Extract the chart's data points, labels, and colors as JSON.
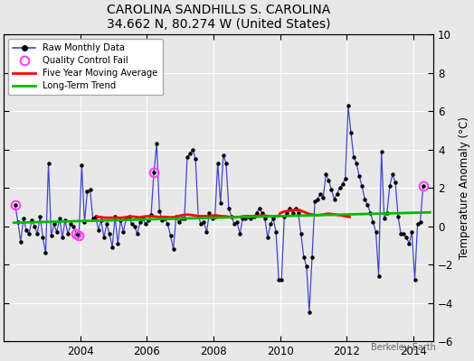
{
  "title": "CAROLINA SANDHILLS S. CAROLINA",
  "subtitle": "34.662 N, 80.274 W (United States)",
  "ylabel": "Temperature Anomaly (°C)",
  "watermark": "Berkeley Earth",
  "ylim": [
    -6,
    10
  ],
  "yticks": [
    -6,
    -4,
    -2,
    0,
    2,
    4,
    6,
    8,
    10
  ],
  "bg_color": "#e8e8e8",
  "plot_bg_color": "#e8e8e8",
  "grid_color": "#ffffff",
  "raw_line_color": "#4444cc",
  "raw_marker_color": "#000000",
  "qc_fail_color": "#ff44ff",
  "moving_avg_color": "#ff0000",
  "trend_color": "#00bb00",
  "raw_data_x": [
    2002.042,
    2002.125,
    2002.208,
    2002.292,
    2002.375,
    2002.458,
    2002.542,
    2002.625,
    2002.708,
    2002.792,
    2002.875,
    2002.958,
    2003.042,
    2003.125,
    2003.208,
    2003.292,
    2003.375,
    2003.458,
    2003.542,
    2003.625,
    2003.708,
    2003.792,
    2003.875,
    2003.958,
    2004.042,
    2004.125,
    2004.208,
    2004.292,
    2004.375,
    2004.458,
    2004.542,
    2004.625,
    2004.708,
    2004.792,
    2004.875,
    2004.958,
    2005.042,
    2005.125,
    2005.208,
    2005.292,
    2005.375,
    2005.458,
    2005.542,
    2005.625,
    2005.708,
    2005.792,
    2005.875,
    2005.958,
    2006.042,
    2006.125,
    2006.208,
    2006.292,
    2006.375,
    2006.458,
    2006.542,
    2006.625,
    2006.708,
    2006.792,
    2006.875,
    2006.958,
    2007.042,
    2007.125,
    2007.208,
    2007.292,
    2007.375,
    2007.458,
    2007.542,
    2007.625,
    2007.708,
    2007.792,
    2007.875,
    2007.958,
    2008.042,
    2008.125,
    2008.208,
    2008.292,
    2008.375,
    2008.458,
    2008.542,
    2008.625,
    2008.708,
    2008.792,
    2008.875,
    2008.958,
    2009.042,
    2009.125,
    2009.208,
    2009.292,
    2009.375,
    2009.458,
    2009.542,
    2009.625,
    2009.708,
    2009.792,
    2009.875,
    2009.958,
    2010.042,
    2010.125,
    2010.208,
    2010.292,
    2010.375,
    2010.458,
    2010.542,
    2010.625,
    2010.708,
    2010.792,
    2010.875,
    2010.958,
    2011.042,
    2011.125,
    2011.208,
    2011.292,
    2011.375,
    2011.458,
    2011.542,
    2011.625,
    2011.708,
    2011.792,
    2011.875,
    2011.958,
    2012.042,
    2012.125,
    2012.208,
    2012.292,
    2012.375,
    2012.458,
    2012.542,
    2012.625,
    2012.708,
    2012.792,
    2012.875,
    2012.958,
    2013.042,
    2013.125,
    2013.208,
    2013.292,
    2013.375,
    2013.458,
    2013.542,
    2013.625,
    2013.708,
    2013.792,
    2013.875,
    2013.958,
    2014.042,
    2014.125,
    2014.208,
    2014.292
  ],
  "raw_data_y": [
    1.1,
    0.2,
    -0.8,
    0.4,
    -0.2,
    -0.4,
    0.3,
    0.0,
    -0.4,
    0.5,
    -0.6,
    -1.4,
    3.3,
    -0.5,
    0.1,
    -0.3,
    0.4,
    -0.6,
    0.3,
    -0.4,
    0.1,
    0.0,
    -0.4,
    -0.5,
    3.2,
    0.2,
    1.8,
    1.9,
    0.4,
    0.5,
    -0.2,
    0.3,
    -0.6,
    0.1,
    -0.4,
    -1.1,
    0.5,
    -0.9,
    0.3,
    -0.3,
    0.4,
    0.5,
    0.1,
    0.0,
    -0.4,
    0.2,
    0.4,
    0.1,
    0.3,
    0.6,
    2.8,
    4.3,
    0.8,
    0.3,
    0.4,
    0.1,
    -0.5,
    -1.2,
    0.5,
    0.2,
    0.4,
    0.4,
    3.6,
    3.8,
    4.0,
    3.5,
    0.5,
    0.1,
    0.2,
    -0.3,
    0.7,
    0.4,
    0.5,
    3.3,
    1.2,
    3.7,
    3.3,
    0.9,
    0.5,
    0.1,
    0.2,
    -0.4,
    0.4,
    0.4,
    0.5,
    0.4,
    0.5,
    0.7,
    0.9,
    0.7,
    0.4,
    -0.6,
    0.1,
    0.4,
    -0.3,
    -2.8,
    -2.8,
    0.5,
    0.7,
    0.9,
    0.7,
    0.9,
    0.7,
    -0.4,
    -1.6,
    -2.1,
    -4.5,
    -1.6,
    1.3,
    1.4,
    1.7,
    1.5,
    2.7,
    2.4,
    1.9,
    1.4,
    1.7,
    2.0,
    2.2,
    2.5,
    6.3,
    4.9,
    3.6,
    3.3,
    2.6,
    2.1,
    1.4,
    1.1,
    0.7,
    0.2,
    -0.3,
    -2.6,
    3.9,
    0.4,
    0.7,
    2.1,
    2.7,
    2.3,
    0.5,
    -0.4,
    -0.4,
    -0.6,
    -0.9,
    -0.3,
    -2.8,
    0.1,
    0.2,
    2.1
  ],
  "qc_fail_points": [
    [
      2002.042,
      1.1
    ],
    [
      2003.875,
      -0.4
    ],
    [
      2003.958,
      -0.5
    ],
    [
      2006.208,
      2.8
    ],
    [
      2014.292,
      2.1
    ]
  ],
  "moving_avg_x": [
    2004.5,
    2004.583,
    2004.667,
    2004.75,
    2004.833,
    2004.917,
    2005.0,
    2005.083,
    2005.167,
    2005.25,
    2005.333,
    2005.417,
    2005.5,
    2005.583,
    2005.667,
    2005.75,
    2005.833,
    2005.917,
    2006.0,
    2006.083,
    2006.167,
    2006.25,
    2006.333,
    2006.417,
    2006.5,
    2006.583,
    2006.667,
    2006.75,
    2006.833,
    2006.917,
    2007.0,
    2007.083,
    2007.167,
    2007.25,
    2007.333,
    2007.417,
    2007.5,
    2007.583,
    2007.667,
    2007.75,
    2007.833,
    2007.917,
    2008.0,
    2008.083,
    2008.167,
    2008.25,
    2008.333,
    2008.417,
    2008.5,
    2008.583,
    2008.667,
    2008.75,
    2008.833,
    2008.917,
    2009.0,
    2009.083,
    2009.167,
    2009.25,
    2009.333,
    2009.417,
    2009.5,
    2009.583,
    2009.667,
    2009.75,
    2009.833,
    2009.958,
    2010.0,
    2010.083,
    2010.167,
    2010.25,
    2010.333,
    2010.417,
    2010.5,
    2010.583,
    2010.667,
    2010.75,
    2010.833,
    2010.917,
    2011.0,
    2011.083,
    2011.167,
    2011.25,
    2011.333,
    2011.417,
    2011.5,
    2011.583,
    2011.667,
    2011.75,
    2011.875,
    2011.958,
    2012.0,
    2012.083
  ],
  "moving_avg_y": [
    0.5,
    0.48,
    0.46,
    0.44,
    0.44,
    0.44,
    0.44,
    0.44,
    0.44,
    0.44,
    0.46,
    0.48,
    0.5,
    0.5,
    0.48,
    0.46,
    0.48,
    0.5,
    0.52,
    0.52,
    0.52,
    0.5,
    0.48,
    0.48,
    0.48,
    0.48,
    0.46,
    0.46,
    0.48,
    0.52,
    0.55,
    0.58,
    0.6,
    0.6,
    0.58,
    0.56,
    0.54,
    0.52,
    0.52,
    0.52,
    0.52,
    0.54,
    0.56,
    0.56,
    0.54,
    0.52,
    0.52,
    0.5,
    0.48,
    0.46,
    0.46,
    0.48,
    0.5,
    0.52,
    0.52,
    0.52,
    0.52,
    0.52,
    0.54,
    0.56,
    0.56,
    0.54,
    0.52,
    0.5,
    0.5,
    0.52,
    0.68,
    0.74,
    0.78,
    0.8,
    0.82,
    0.84,
    0.86,
    0.84,
    0.78,
    0.72,
    0.66,
    0.62,
    0.6,
    0.58,
    0.58,
    0.6,
    0.62,
    0.65,
    0.65,
    0.62,
    0.6,
    0.58,
    0.55,
    0.52,
    0.5,
    0.48
  ],
  "trend_x": [
    2002.0,
    2014.5
  ],
  "trend_y": [
    0.18,
    0.72
  ],
  "xticks": [
    2004,
    2006,
    2008,
    2010,
    2012,
    2014
  ],
  "xlim": [
    2001.7,
    2014.6
  ]
}
